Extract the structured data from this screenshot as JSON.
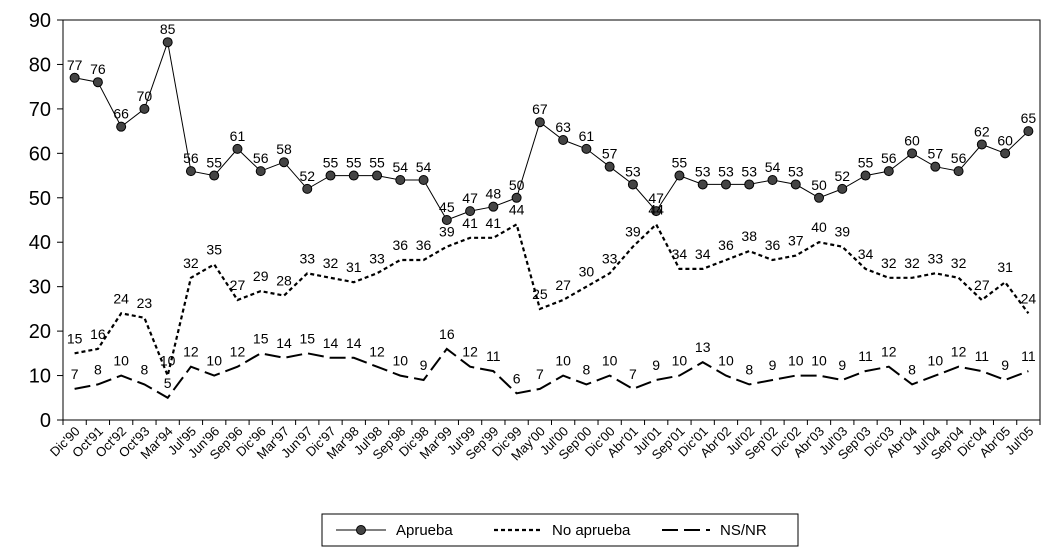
{
  "chart_data": {
    "type": "line",
    "title": "",
    "xlabel": "",
    "ylabel": "",
    "ylim": [
      0,
      90
    ],
    "yticks": [
      0,
      10,
      20,
      30,
      40,
      50,
      60,
      70,
      80,
      90
    ],
    "grid": false,
    "legend_position": "bottom",
    "categories": [
      "Dic'90",
      "Oct'91",
      "Oct'92",
      "Oct'93",
      "Mar'94",
      "Jul'95",
      "Jun'96",
      "Sep'96",
      "Dic'96",
      "Mar'97",
      "Jun'97",
      "Dic'97",
      "Mar'98",
      "Jul'98",
      "Sep'98",
      "Dic'98",
      "Mar'99",
      "Jul'99",
      "Sep'99",
      "Dic'99",
      "May'00",
      "Jul'00",
      "Sep'00",
      "Dic'00",
      "Abr'01",
      "Jul'01",
      "Sep'01",
      "Dic'01",
      "Abr'02",
      "Jul'02",
      "Sep'02",
      "Dic'02",
      "Abr'03",
      "Jul'03",
      "Sep'03",
      "Dic'03",
      "Abr'04",
      "Jul'04",
      "Sep'04",
      "Dic'04",
      "Abr'05",
      "Jul'05"
    ],
    "series": [
      {
        "name": "Aprueba",
        "style": "solid-marker",
        "color": "#000000",
        "values": [
          77,
          76,
          66,
          70,
          85,
          56,
          55,
          61,
          56,
          58,
          52,
          55,
          55,
          55,
          54,
          54,
          45,
          47,
          48,
          50,
          67,
          63,
          61,
          57,
          53,
          47,
          55,
          53,
          53,
          53,
          54,
          53,
          50,
          52,
          55,
          56,
          60,
          57,
          56,
          62,
          60,
          65
        ]
      },
      {
        "name": "No aprueba",
        "style": "dotted",
        "color": "#000000",
        "values": [
          15,
          16,
          24,
          23,
          10,
          32,
          35,
          27,
          29,
          28,
          33,
          32,
          31,
          33,
          36,
          36,
          39,
          41,
          41,
          44,
          25,
          27,
          30,
          33,
          39,
          44,
          34,
          34,
          36,
          38,
          36,
          37,
          40,
          39,
          34,
          32,
          32,
          33,
          32,
          27,
          31,
          24
        ]
      },
      {
        "name": "NS/NR",
        "style": "dashed",
        "color": "#000000",
        "values": [
          7,
          8,
          10,
          8,
          5,
          12,
          10,
          12,
          15,
          14,
          15,
          14,
          14,
          12,
          10,
          9,
          16,
          12,
          11,
          6,
          7,
          10,
          8,
          10,
          7,
          9,
          10,
          13,
          10,
          8,
          9,
          10,
          10,
          9,
          11,
          12,
          8,
          10,
          12,
          11,
          9,
          11
        ]
      }
    ]
  }
}
